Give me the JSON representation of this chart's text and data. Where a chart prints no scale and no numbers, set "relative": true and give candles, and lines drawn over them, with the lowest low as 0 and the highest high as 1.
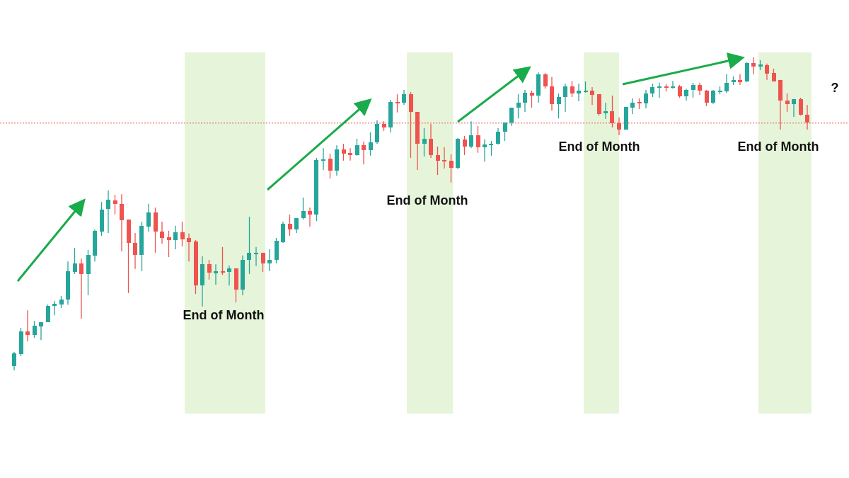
{
  "chart_data": {
    "type": "candlestick",
    "relative": true,
    "categories": [
      null,
      null,
      null,
      null,
      null,
      null,
      null,
      null,
      null,
      null,
      null,
      null,
      null,
      null,
      null,
      null,
      null,
      null,
      null,
      null,
      null,
      null,
      null,
      null,
      null,
      null,
      null,
      null,
      null,
      null,
      null,
      null,
      null,
      null,
      null,
      null,
      null,
      null,
      null,
      null,
      null,
      null,
      null,
      null,
      null,
      null,
      null,
      null,
      null,
      null,
      null,
      null,
      null,
      null,
      null,
      null,
      null,
      null,
      null,
      null,
      null,
      null,
      null,
      null,
      null,
      null,
      null,
      null,
      null,
      null,
      null,
      null,
      null,
      null,
      null,
      null,
      null,
      null,
      null,
      null,
      null,
      null,
      null,
      null,
      null,
      null,
      null,
      null,
      null,
      null,
      null,
      null,
      null,
      null,
      null,
      null,
      null,
      null,
      null,
      null,
      null,
      null,
      null,
      null,
      null,
      null,
      null,
      null,
      null,
      null,
      null,
      null,
      null,
      null,
      null,
      null,
      null,
      null,
      null
    ],
    "ohlc": [
      [
        0.014,
        0.059,
        0,
        0.054
      ],
      [
        0.052,
        0.136,
        0.045,
        0.124
      ],
      [
        0.124,
        0.192,
        0.093,
        0.113
      ],
      [
        0.113,
        0.158,
        0.104,
        0.143
      ],
      [
        0.14,
        0.154,
        0.097,
        0.154
      ],
      [
        0.154,
        0.21,
        0.154,
        0.206
      ],
      [
        0.206,
        0.222,
        0.176,
        0.213
      ],
      [
        0.21,
        0.238,
        0.199,
        0.226
      ],
      [
        0.226,
        0.348,
        0.21,
        0.317
      ],
      [
        0.314,
        0.391,
        0.308,
        0.342
      ],
      [
        0.342,
        0.357,
        0.165,
        0.308
      ],
      [
        0.308,
        0.385,
        0.24,
        0.369
      ],
      [
        0.367,
        0.45,
        0.348,
        0.446
      ],
      [
        0.443,
        0.538,
        0.43,
        0.514
      ],
      [
        0.516,
        0.575,
        0.439,
        0.545
      ],
      [
        0.543,
        0.561,
        0.498,
        0.532
      ],
      [
        0.532,
        0.563,
        0.38,
        0.48
      ],
      [
        0.482,
        0.482,
        0.247,
        0.407
      ],
      [
        0.407,
        0.439,
        0.324,
        0.369
      ],
      [
        0.369,
        0.475,
        0.317,
        0.462
      ],
      [
        0.459,
        0.532,
        0.443,
        0.505
      ],
      [
        0.505,
        0.52,
        0.376,
        0.443
      ],
      [
        0.443,
        0.475,
        0.405,
        0.423
      ],
      [
        0.425,
        0.446,
        0.362,
        0.416
      ],
      [
        0.416,
        0.462,
        0.387,
        0.441
      ],
      [
        0.441,
        0.475,
        0.396,
        0.419
      ],
      [
        0.423,
        0.437,
        0.348,
        0.41
      ],
      [
        0.412,
        0.416,
        0.244,
        0.271
      ],
      [
        0.271,
        0.364,
        0.204,
        0.339
      ],
      [
        0.339,
        0.353,
        0.29,
        0.312
      ],
      [
        0.31,
        0.339,
        0.274,
        0.317
      ],
      [
        0.317,
        0.394,
        0.305,
        0.314
      ],
      [
        0.314,
        0.335,
        0.271,
        0.326
      ],
      [
        0.326,
        0.326,
        0.217,
        0.258
      ],
      [
        0.258,
        0.367,
        0.24,
        0.353
      ],
      [
        0.353,
        0.491,
        0.308,
        0.376
      ],
      [
        0.373,
        0.394,
        0.333,
        0.376
      ],
      [
        0.376,
        0.376,
        0.314,
        0.342
      ],
      [
        0.342,
        0.387,
        0.317,
        0.353
      ],
      [
        0.353,
        0.423,
        0.342,
        0.414
      ],
      [
        0.41,
        0.475,
        0.407,
        0.468
      ],
      [
        0.468,
        0.498,
        0.43,
        0.45
      ],
      [
        0.45,
        0.486,
        0.439,
        0.486
      ],
      [
        0.486,
        0.552,
        0.482,
        0.509
      ],
      [
        0.509,
        0.52,
        0.459,
        0.498
      ],
      [
        0.498,
        0.679,
        0.477,
        0.672
      ],
      [
        0.672,
        0.71,
        0.64,
        0.674
      ],
      [
        0.676,
        0.692,
        0.613,
        0.638
      ],
      [
        0.638,
        0.719,
        0.622,
        0.706
      ],
      [
        0.706,
        0.724,
        0.67,
        0.692
      ],
      [
        0.695,
        0.71,
        0.67,
        0.688
      ],
      [
        0.688,
        0.74,
        0.686,
        0.719
      ],
      [
        0.719,
        0.731,
        0.658,
        0.704
      ],
      [
        0.704,
        0.76,
        0.686,
        0.729
      ],
      [
        0.729,
        0.799,
        0.724,
        0.787
      ],
      [
        0.787,
        0.796,
        0.765,
        0.776
      ],
      [
        0.776,
        0.864,
        0.76,
        0.857
      ],
      [
        0.857,
        0.882,
        0.824,
        0.855
      ],
      [
        0.855,
        0.896,
        0.848,
        0.882
      ],
      [
        0.882,
        0.889,
        0.679,
        0.826
      ],
      [
        0.826,
        0.826,
        0.64,
        0.724
      ],
      [
        0.724,
        0.774,
        0.683,
        0.74
      ],
      [
        0.74,
        0.787,
        0.679,
        0.688
      ],
      [
        0.688,
        0.715,
        0.624,
        0.67
      ],
      [
        0.672,
        0.713,
        0.645,
        0.667
      ],
      [
        0.67,
        0.69,
        0.6,
        0.647
      ],
      [
        0.647,
        0.742,
        0.643,
        0.74
      ],
      [
        0.738,
        0.749,
        0.688,
        0.715
      ],
      [
        0.715,
        0.796,
        0.71,
        0.751
      ],
      [
        0.751,
        0.781,
        0.695,
        0.713
      ],
      [
        0.713,
        0.738,
        0.667,
        0.722
      ],
      [
        0.722,
        0.733,
        0.686,
        0.724
      ],
      [
        0.724,
        0.774,
        0.722,
        0.762
      ],
      [
        0.762,
        0.792,
        0.733,
        0.792
      ],
      [
        0.792,
        0.839,
        0.781,
        0.839
      ],
      [
        0.839,
        0.882,
        0.805,
        0.855
      ],
      [
        0.855,
        0.896,
        0.826,
        0.887
      ],
      [
        0.887,
        0.894,
        0.839,
        0.878
      ],
      [
        0.878,
        0.952,
        0.855,
        0.946
      ],
      [
        0.946,
        0.95,
        0.9,
        0.907
      ],
      [
        0.907,
        0.937,
        0.83,
        0.851
      ],
      [
        0.851,
        0.885,
        0.805,
        0.873
      ],
      [
        0.873,
        0.916,
        0.826,
        0.907
      ],
      [
        0.907,
        0.925,
        0.873,
        0.885
      ],
      [
        0.885,
        0.916,
        0.86,
        0.894
      ],
      [
        0.891,
        0.923,
        0.887,
        0.894
      ],
      [
        0.894,
        0.905,
        0.848,
        0.88
      ],
      [
        0.882,
        0.882,
        0.814,
        0.819
      ],
      [
        0.821,
        0.855,
        0.803,
        0.828
      ],
      [
        0.828,
        0.878,
        0.776,
        0.79
      ],
      [
        0.79,
        0.808,
        0.751,
        0.769
      ],
      [
        0.769,
        0.842,
        0.769,
        0.842
      ],
      [
        0.839,
        0.869,
        0.819,
        0.855
      ],
      [
        0.857,
        0.869,
        0.835,
        0.853
      ],
      [
        0.853,
        0.896,
        0.837,
        0.885
      ],
      [
        0.885,
        0.916,
        0.873,
        0.905
      ],
      [
        0.905,
        0.919,
        0.871,
        0.907
      ],
      [
        0.907,
        0.914,
        0.891,
        0.903
      ],
      [
        0.905,
        0.925,
        0.9,
        0.907
      ],
      [
        0.907,
        0.912,
        0.871,
        0.876
      ],
      [
        0.876,
        0.9,
        0.862,
        0.896
      ],
      [
        0.896,
        0.919,
        0.871,
        0.912
      ],
      [
        0.912,
        0.919,
        0.88,
        0.894
      ],
      [
        0.894,
        0.896,
        0.844,
        0.855
      ],
      [
        0.855,
        0.896,
        0.851,
        0.894
      ],
      [
        0.891,
        0.907,
        0.882,
        0.894
      ],
      [
        0.891,
        0.946,
        0.887,
        0.919
      ],
      [
        0.921,
        0.939,
        0.912,
        0.928
      ],
      [
        0.928,
        0.946,
        0.912,
        0.921
      ],
      [
        0.923,
        0.984,
        0.921,
        0.982
      ],
      [
        0.982,
        1,
        0.946,
        0.971
      ],
      [
        0.971,
        0.991,
        0.959,
        0.977
      ],
      [
        0.975,
        0.98,
        0.928,
        0.948
      ],
      [
        0.95,
        0.964,
        0.923,
        0.923
      ],
      [
        0.928,
        0.928,
        0.769,
        0.862
      ],
      [
        0.862,
        0.885,
        0.826,
        0.851
      ],
      [
        0.851,
        0.867,
        0.81,
        0.867
      ],
      [
        0.867,
        0.871,
        0.814,
        0.817
      ],
      [
        0.817,
        0.848,
        0.769,
        0.792
      ]
    ],
    "ref_lines": [
      {
        "axis": "y",
        "value": 0.79,
        "color": "#ef5350",
        "line_style": "dotted"
      }
    ],
    "annotations": [
      "End of Month",
      "End of Month",
      "End of Month",
      "End of Month",
      "?"
    ]
  }
}
